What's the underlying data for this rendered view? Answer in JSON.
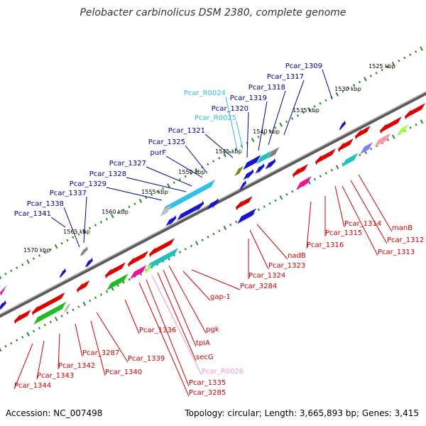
{
  "title": "Pelobacter carbinolicus DSM 2380, complete genome",
  "footer": {
    "accession": "Accession: NC_007498",
    "topology": "Topology: circular; Length: 3,665,893 bp; Genes: 3,415"
  },
  "scale_labels": [
    "1525 kbp",
    "1530 kbp",
    "1535 kbp",
    "1540 kbp",
    "1545 kbp",
    "1550 kbp",
    "1555 kbp",
    "1560 kbp",
    "1565 kbp",
    "1570 kbp"
  ],
  "colors": {
    "forward_label": "#00008b",
    "reverse_label": "#cc0000",
    "rna_forward_label": "#33bbdd",
    "rna_reverse_label": "#ee99cc",
    "backbone": "#808080",
    "tick": "#228b22"
  },
  "forward_genes": [
    "Pcar_1309",
    "Pcar_1317",
    "Pcar_1318",
    "Pcar_1319",
    "Pcar_1320",
    "Pcar_R0024",
    "Pcar_R0025",
    "Pcar_1321",
    "Pcar_1325",
    "purF",
    "Pcar_1327",
    "Pcar_1328",
    "Pcar_1329",
    "Pcar_1337",
    "Pcar_1338",
    "Pcar_1341"
  ],
  "reverse_genes": [
    "manB",
    "Pcar_1312",
    "Pcar_1313",
    "Pcar_1314",
    "Pcar_1315",
    "Pcar_1316",
    "nadB",
    "Pcar_1323",
    "Pcar_1324",
    "Pcar_3284",
    "gap-1",
    "pgk",
    "tpiA",
    "secG",
    "Pcar_R0026",
    "Pcar_1335",
    "Pcar_3285",
    "Pcar_1336",
    "Pcar_1339",
    "Pcar_1340",
    "Pcar_3287",
    "Pcar_1342",
    "Pcar_1343",
    "Pcar_1344"
  ]
}
